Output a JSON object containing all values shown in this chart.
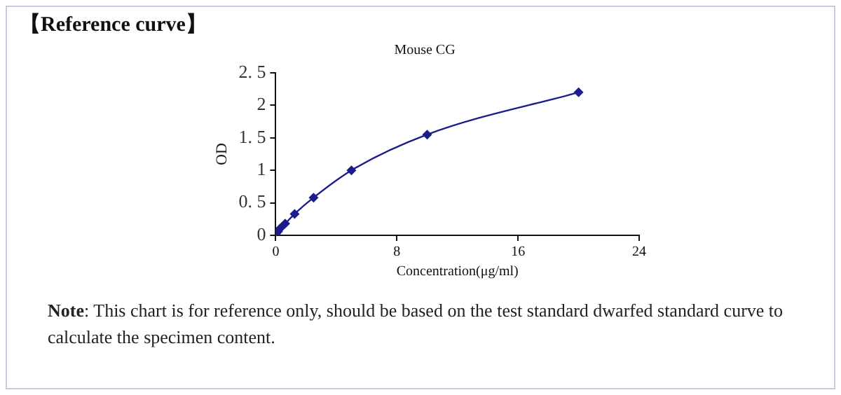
{
  "chart_data": {
    "type": "line",
    "title": "【Reference curve】",
    "subtitle": "Mouse CG",
    "xlabel": "Concentration(μg/ml)",
    "ylabel": "OD",
    "annotations": [
      "Note: This chart is for reference only, should be based on the test standard dwarfed standard curve to calculate the specimen content."
    ],
    "x": [
      0,
      0.156,
      0.3125,
      0.625,
      1.25,
      2.5,
      5,
      10,
      20
    ],
    "series": [
      {
        "color": "#1c1c8a",
        "values": [
          0.02,
          0.06,
          0.11,
          0.18,
          0.33,
          0.58,
          1.0,
          1.55,
          2.2
        ]
      }
    ],
    "xlim": [
      0,
      24
    ],
    "xticks": [
      0,
      8,
      16,
      24
    ],
    "ylim": [
      0,
      2.5
    ],
    "yticks": [
      0,
      {
        "value": 0.5,
        "label": "0. 5"
      },
      1,
      {
        "value": 1.5,
        "label": "1. 5"
      },
      2,
      {
        "value": 2.5,
        "label": "2. 5"
      }
    ],
    "grid": false,
    "legend": false,
    "marker": "diamond",
    "line_style": "solid"
  }
}
